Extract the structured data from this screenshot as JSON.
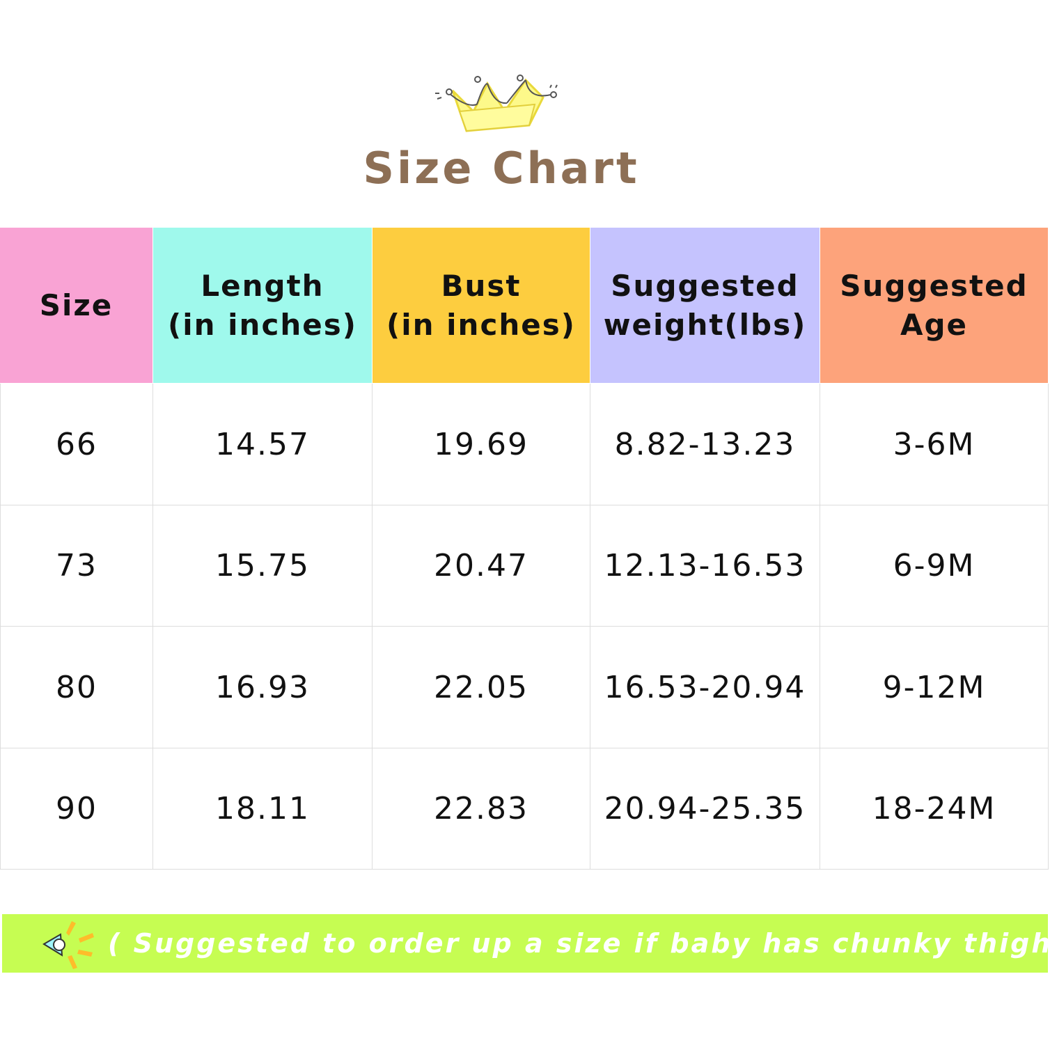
{
  "header": {
    "title": "Size Chart"
  },
  "table": {
    "columns": [
      [
        "Size"
      ],
      [
        "Length",
        "(in inches)"
      ],
      [
        "Bust",
        "(in inches)"
      ],
      [
        "Suggested",
        "weight(lbs)"
      ],
      [
        "Suggested",
        "Age"
      ]
    ],
    "rows": [
      [
        "66",
        "14.57",
        "19.69",
        "8.82-13.23",
        "3-6M"
      ],
      [
        "73",
        "15.75",
        "20.47",
        "12.13-16.53",
        "6-9M"
      ],
      [
        "80",
        "16.93",
        "22.05",
        "16.53-20.94",
        "9-12M"
      ],
      [
        "90",
        "18.11",
        "22.83",
        "20.94-25.35",
        "18-24M"
      ]
    ]
  },
  "note": "( Suggested to order up a size if baby has chunky thighs )"
}
